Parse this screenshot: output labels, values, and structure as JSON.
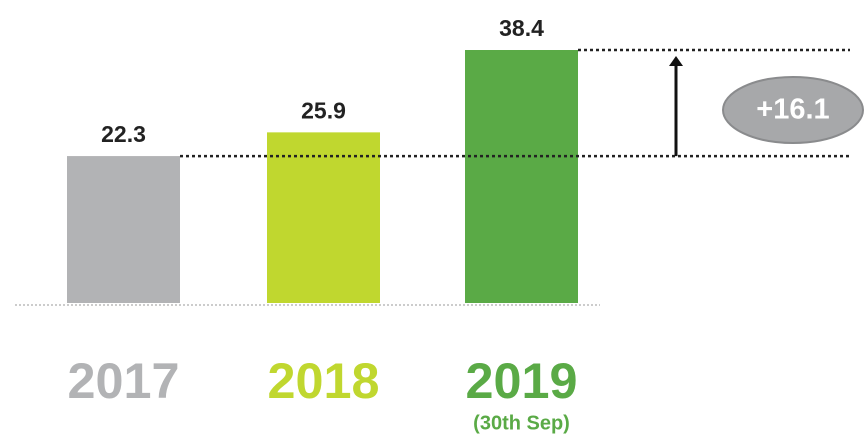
{
  "chart_data": {
    "type": "bar",
    "categories": [
      "2017",
      "2018",
      "2019"
    ],
    "values": [
      22.3,
      25.9,
      38.4
    ],
    "colors": [
      "#b2b3b5",
      "#c0d72f",
      "#5aaa46"
    ],
    "note": "(30th Sep)",
    "annotation": "+16.1"
  }
}
